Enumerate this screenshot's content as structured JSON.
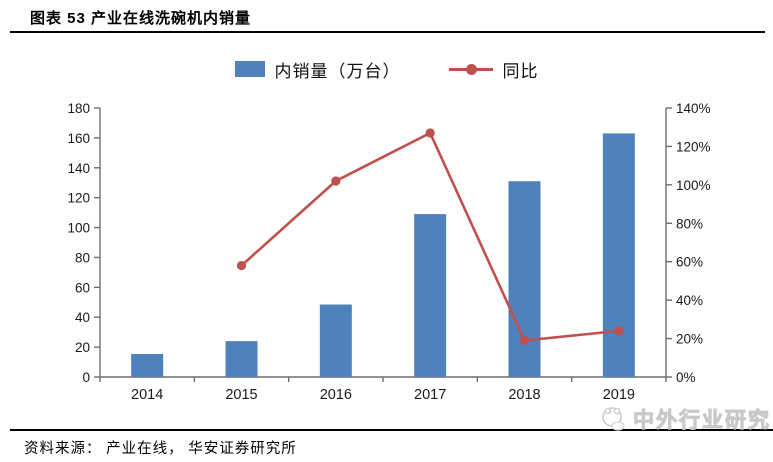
{
  "header": {
    "title": "图表  53 产业在线洗碗机内销量"
  },
  "chart_data": {
    "type": "bar",
    "title": "产业在线洗碗机内销量",
    "categories": [
      "2014",
      "2015",
      "2016",
      "2017",
      "2018",
      "2019"
    ],
    "series": [
      {
        "name": "内销量（万台）",
        "type": "bar",
        "axis": "left",
        "color": "#4f81bd",
        "values": [
          15.4,
          24,
          48.5,
          109,
          131,
          163
        ]
      },
      {
        "name": "同比",
        "type": "line",
        "axis": "right",
        "color": "#c0504d",
        "values": [
          null,
          58,
          102,
          127,
          19,
          24
        ],
        "unit": "%"
      }
    ],
    "left_axis": {
      "min": 0,
      "max": 180,
      "step": 20,
      "suffix": ""
    },
    "right_axis": {
      "min": 0,
      "max": 140,
      "step": 20,
      "suffix": "%"
    },
    "grid": false,
    "legend_position": "top",
    "axis_color": "#6e6e6e",
    "tick_label_color": "#1a1a1a"
  },
  "footer": {
    "source": "资料来源：  产业在线，  华安证券研究所",
    "watermark": "中外行业研究"
  }
}
